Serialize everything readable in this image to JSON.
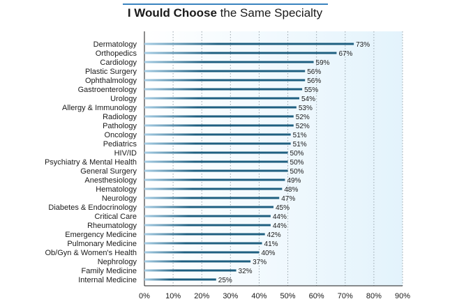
{
  "title": {
    "bold": "I Would Choose",
    "rest": " the Same Specialty"
  },
  "colors": {
    "accent_line": "#3a84bf",
    "bar": "#1e5f80",
    "bar_fade": "#a9cfe6",
    "plot_bg_left": "#ffffff",
    "plot_bg_right": "#e3f3fc",
    "grid": "#9aa6ad",
    "text": "#1a1a1a"
  },
  "chart_data": {
    "type": "bar",
    "orientation": "horizontal",
    "categories": [
      "Dermatology",
      "Orthopedics",
      "Cardiology",
      "Plastic Surgery",
      "Ophthalmology",
      "Gastroenterology",
      "Urology",
      "Allergy & Immunology",
      "Radiology",
      "Pathology",
      "Oncology",
      "Pediatrics",
      "HIV/ID",
      "Psychiatry & Mental Health",
      "General Surgery",
      "Anesthesiology",
      "Hematology",
      "Neurology",
      "Diabetes & Endocrinology",
      "Critical Care",
      "Rheumatology",
      "Emergency Medicine",
      "Pulmonary Medicine",
      "Ob/Gyn & Women's Health",
      "Nephrology",
      "Family Medicine",
      "Internal Medicine"
    ],
    "values": [
      73,
      67,
      59,
      56,
      56,
      55,
      54,
      53,
      52,
      52,
      51,
      51,
      50,
      50,
      50,
      49,
      48,
      47,
      45,
      44,
      44,
      42,
      41,
      40,
      37,
      32,
      25
    ],
    "value_labels": [
      "73%",
      "67%",
      "59%",
      "56%",
      "56%",
      "55%",
      "54%",
      "53%",
      "52%",
      "52%",
      "51%",
      "51%",
      "50%",
      "50%",
      "50%",
      "49%",
      "48%",
      "47%",
      "45%",
      "44%",
      "44%",
      "42%",
      "41%",
      "40%",
      "37%",
      "32%",
      "25%"
    ],
    "xlim": [
      0,
      90
    ],
    "xticks": [
      0,
      10,
      20,
      30,
      40,
      50,
      60,
      70,
      80,
      90
    ],
    "xtick_labels": [
      "0%",
      "10%",
      "20%",
      "30%",
      "40%",
      "50%",
      "60%",
      "70%",
      "80%",
      "90%"
    ],
    "xlabel": "",
    "ylabel": "",
    "grid": "vertical dotted",
    "legend": "none"
  }
}
